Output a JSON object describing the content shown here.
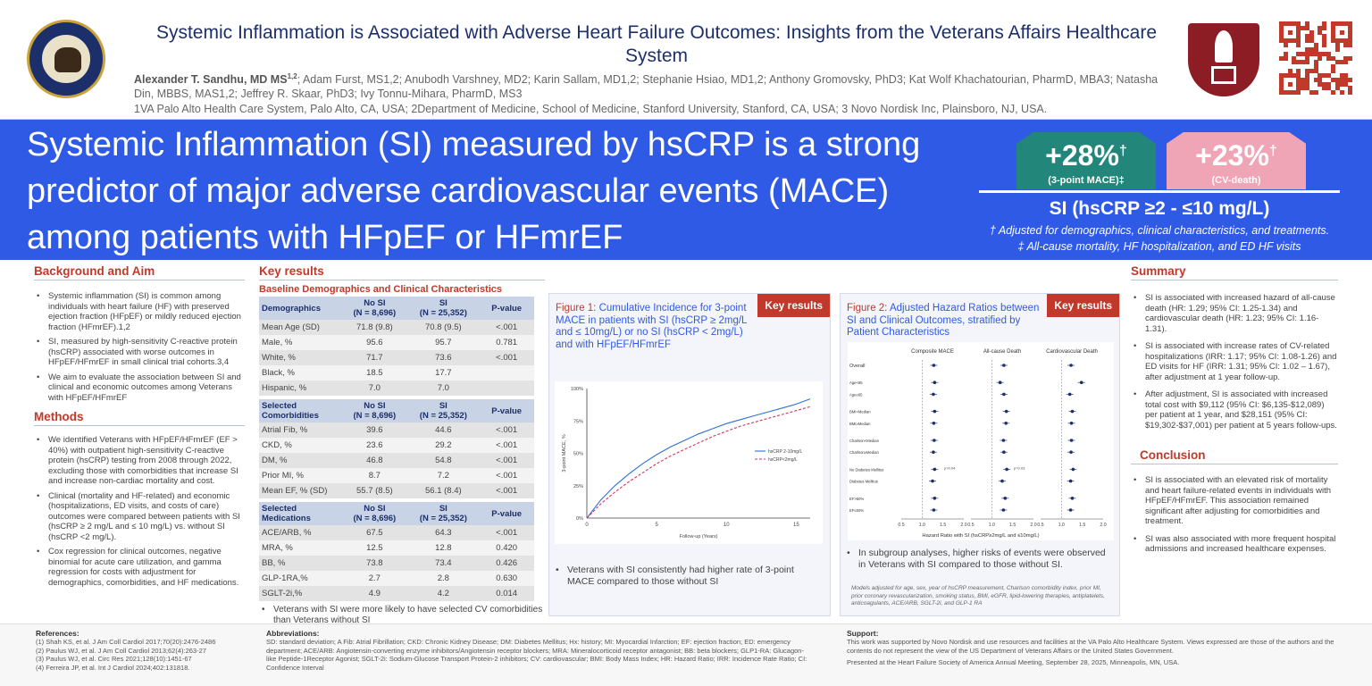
{
  "header": {
    "title": "Systemic Inflammation is Associated with Adverse Heart Failure Outcomes: Insights from the Veterans Affairs Healthcare System",
    "lead_author": "Alexander T. Sandhu, MD MS",
    "lead_author_sup": "1,2",
    "authors_rest": "; Adam Furst, MS1,2; Anubodh Varshney, MD2; Karin Sallam, MD1,2; Stephanie Hsiao, MD1,2; Anthony Gromovsky, PhD3; Kat Wolf Khachatourian, PharmD, MBA3; Natasha Din, MBBS, MAS1,2; Jeffrey R. Skaar, PhD3; Ivy Tonnu-Mihara, PharmD, MS3",
    "affiliations": "1VA Palo Alto Health Care System, Palo Alto, CA, USA; 2Department of Medicine, School of Medicine, Stanford University, Stanford, CA, USA; 3 Novo Nordisk Inc, Plainsboro, NJ, USA."
  },
  "banner": {
    "headline": "Systemic Inflammation (SI) measured by hsCRP is a strong predictor of major adverse cardiovascular events (MACE) among patients with HFpEF or HFmrEF",
    "badge1_value": "+28%",
    "badge1_mark": "†",
    "badge1_label": "(3-point MACE)‡",
    "badge2_value": "+23%",
    "badge2_mark": "†",
    "badge2_label": "(CV-death)",
    "si_label": "SI (hsCRP ≥2 - ≤10 mg/L)",
    "note1": "† Adjusted for demographics, clinical characteristics, and treatments.",
    "note2": "‡ All-cause mortality, HF hospitalization, and ED HF visits",
    "colors": {
      "banner": "#2f5ae6",
      "badge1": "#23867a",
      "badge2": "#f0a5b7"
    }
  },
  "background": {
    "heading": "Background and Aim",
    "bullets": [
      "Systemic inflammation (SI) is common among individuals with heart failure (HF) with preserved ejection fraction (HFpEF) or mildly reduced ejection fraction (HFmrEF).1,2",
      "SI, measured by high-sensitivity C-reactive protein (hsCRP) associated with worse outcomes in HFpEF/HFmrEF in small clinical trial cohorts.3,4",
      "We aim to evaluate the association between SI and clinical and economic outcomes among Veterans with HFpEF/HFmrEF"
    ]
  },
  "methods": {
    "heading": "Methods",
    "bullets": [
      "We identified Veterans with HFpEF/HFmrEF (EF > 40%) with outpatient high-sensitivity C-reactive protein (hsCRP) testing from 2008 through 2022, excluding those with comorbidities that increase SI and increase non-cardiac mortality and cost.",
      "Clinical (mortality and HF-related) and economic (hospitalizations, ED visits, and costs of care) outcomes were compared between patients with SI (hsCRP ≥ 2 mg/L and ≤ 10 mg/L) vs. without SI (hsCRP <2 mg/L).",
      "Cox regression for clinical outcomes, negative binomial for acute care utilization, and gamma regression for costs with adjustment for demographics, comorbidities, and HF medications."
    ]
  },
  "key_results": {
    "heading": "Key results",
    "subheading": "Baseline Demographics and Clinical Characteristics",
    "tables": [
      {
        "headers": [
          "Demographics",
          "No SI\n(N = 8,696)",
          "SI\n(N = 25,352)",
          "P-value"
        ],
        "rows": [
          [
            "Mean Age (SD)",
            "71.8 (9.8)",
            "70.8 (9.5)",
            "<.001"
          ],
          [
            "Male, %",
            "95.6",
            "95.7",
            "0.781"
          ],
          [
            "White, %",
            "71.7",
            "73.6",
            "<.001"
          ],
          [
            "Black, %",
            "18.5",
            "17.7",
            ""
          ],
          [
            "Hispanic, %",
            "7.0",
            "7.0",
            ""
          ]
        ]
      },
      {
        "headers": [
          "Selected\nComorbidities",
          "No SI\n(N = 8,696)",
          "SI\n(N = 25,352)",
          "P-value"
        ],
        "rows": [
          [
            "Atrial Fib, %",
            "39.6",
            "44.6",
            "<.001"
          ],
          [
            "CKD, %",
            "23.6",
            "29.2",
            "<.001"
          ],
          [
            "DM, %",
            "46.8",
            "54.8",
            "<.001"
          ],
          [
            "Prior MI, %",
            "8.7",
            "7.2",
            "<.001"
          ],
          [
            "Mean EF, % (SD)",
            "55.7 (8.5)",
            "56.1 (8.4)",
            "<.001"
          ]
        ]
      },
      {
        "headers": [
          "Selected\nMedications",
          "No SI\n(N = 8,696)",
          "SI\n(N = 25,352)",
          "P-value"
        ],
        "rows": [
          [
            "ACE/ARB, %",
            "67.5",
            "64.3",
            "<.001"
          ],
          [
            "MRA, %",
            "12.5",
            "12.8",
            "0.420"
          ],
          [
            "BB, %",
            "73.8",
            "73.4",
            "0.426"
          ],
          [
            "GLP-1RA,%",
            "2.7",
            "2.8",
            "0.630"
          ],
          [
            "SGLT-2i,%",
            "4.9",
            "4.2",
            "0.014"
          ]
        ]
      }
    ],
    "bullet": "Veterans with SI were more likely to have selected CV comorbidities than Veterans without SI"
  },
  "figure1": {
    "badge": "Key results",
    "label": "Figure 1:",
    "title": "Cumulative Incidence for 3-point MACE in patients with SI (hsCRP ≥ 2mg/L and ≤ 10mg/L) or no SI (hsCRP < 2mg/L) and with HFpEF/HFmrEF",
    "bullet": "Veterans with SI consistently had higher rate of 3-point MACE compared to those without SI"
  },
  "figure2": {
    "badge": "Key results",
    "label": "Figure 2:",
    "title": "Adjusted Hazard Ratios between SI and Clinical Outcomes, stratified by Patient Characteristics",
    "bullet": "In subgroup analyses, higher risks of events were observed in Veterans with SI compared to those without SI.",
    "footnote": "Models adjusted for age, sex, year of hsCRP measurement, Charlson comorbidity index, prior MI, prior coronary revascularization, smoking status, BMI, eGFR, lipid-lowering therapies, antiplatelets, anticoagulants, ACE/ARB, SGLT-2i, and GLP-1 RA"
  },
  "chart_data": [
    {
      "type": "line",
      "title": "",
      "xlabel": "Follow-up (Years)",
      "ylabel": "3-point MACE, %",
      "xlim": [
        0,
        16
      ],
      "ylim": [
        0,
        100
      ],
      "xticks": [
        "0",
        "5",
        "10",
        "15"
      ],
      "yticks": [
        "0%",
        "25%",
        "50%",
        "75%",
        "100%"
      ],
      "legend_position": "right",
      "series": [
        {
          "name": "hsCRP 2-10mg/L",
          "color": "#2f6fd6",
          "dash": false,
          "x": [
            0,
            1,
            2,
            3,
            4,
            5,
            6,
            7,
            8,
            9,
            10,
            11,
            12,
            13,
            14,
            15,
            16
          ],
          "values": [
            0,
            14,
            25,
            34,
            42,
            49,
            55,
            60,
            65,
            69,
            73,
            76,
            79,
            82,
            85,
            88,
            92
          ]
        },
        {
          "name": "hsCRP<2mg/L",
          "color": "#d6335a",
          "dash": true,
          "x": [
            0,
            1,
            2,
            3,
            4,
            5,
            6,
            7,
            8,
            9,
            10,
            11,
            12,
            13,
            14,
            15,
            16
          ],
          "values": [
            0,
            11,
            20,
            28,
            35,
            42,
            48,
            53,
            58,
            63,
            67,
            71,
            74,
            77,
            80,
            83,
            86
          ]
        }
      ]
    },
    {
      "type": "scatter",
      "title": "",
      "xlabel": "Hazard Ratio with SI (hsCRP≥2mg/L and ≤10mg/L)",
      "panels": [
        "Composite MACE",
        "All-cause Death",
        "Cardiovascular Death"
      ],
      "xticks": [
        "0.5",
        "1.0",
        "1.5",
        "2.0"
      ],
      "xlim": [
        0.5,
        2.0
      ],
      "subgroups": [
        "Overall",
        "Age<65",
        "Age≥65",
        "BMI<Median",
        "BMI≥Median",
        "Charlson<Median",
        "Charlson≥Median",
        "No Diabetes Mellitus",
        "Diabetes Mellitus",
        "EF>50%",
        "EF≤50%"
      ],
      "annotations": [
        "p=0.04",
        "p=0.03"
      ],
      "estimates": [
        [
          1.28,
          1.3,
          1.27,
          1.3,
          1.28,
          1.29,
          1.27,
          1.3,
          1.25,
          1.3,
          1.28
        ],
        [
          1.29,
          1.2,
          1.29,
          1.35,
          1.34,
          1.28,
          1.29,
          1.36,
          1.25,
          1.32,
          1.28
        ],
        [
          1.23,
          1.48,
          1.2,
          1.26,
          1.24,
          1.24,
          1.23,
          1.28,
          1.22,
          1.26,
          1.22
        ]
      ]
    }
  ],
  "summary": {
    "heading": "Summary",
    "bullets": [
      "SI is associated with increased hazard of all-cause death (HR: 1.29; 95% CI: 1.25-1.34) and cardiovascular death (HR: 1.23; 95% CI: 1.16-1.31).",
      "SI is associated with increase rates of CV-related hospitalizations (IRR: 1.17; 95% CI: 1.08-1.26) and ED visits for HF (IRR: 1.31; 95% CI: 1.02 – 1.67), after adjustment at 1 year follow-up.",
      "After adjustment, SI is associated with increased total cost with $9,112 (95% CI: $6,135-$12,089) per patient at 1 year, and $28,151 (95% CI: $19,302-$37,001) per patient at 5 years follow-ups."
    ]
  },
  "conclusion": {
    "heading": "Conclusion",
    "bullets": [
      "SI is associated with an elevated risk of mortality and heart failure-related events in individuals with HFpEF/HFmrEF. This association remained significant after adjusting for comorbidities and treatment.",
      "SI was also associated with more frequent hospital admissions and increased healthcare expenses."
    ]
  },
  "footer": {
    "refs_heading": "References:",
    "refs": [
      "(1)  Shah KS, et al. J Am Coll Cardiol 2017;70(20):2476-2486",
      "(2)  Paulus WJ, et al. J Am Coll Cardiol 2013;62(4):263-27",
      "(3)  Paulus WJ, et al. Circ Res 2021;128(10):1451-67",
      "(4)  Ferreira JP, et al. Int J Cardiol 2024;402:131818."
    ],
    "abbr_heading": "Abbreviations:",
    "abbr": "SD: standard deviation; A Fib: Atrial Fibrillation; CKD: Chronic Kidney Disease; DM: Diabetes Mellitus; Hx: history; MI: Myocardial Infarction; EF: ejection fraction; ED: emergency department; ACE/ARB: Angiotensin-converting enzyme inhibitors/Angiotensin receptor blockers; MRA: Mineralocorticoid receptor antagonist; BB: beta blockers; GLP1-RA: Glucagon-like Peptide-1Receptor Agonist; SGLT-2i: Sodium-Glucose Transport Protein-2 inhibitors; CV: cardiovascular; BMI: Body Mass Index; HR: Hazard Ratio; IRR: Incidence Rate Ratio; CI: Confidence Interval",
    "support_heading": "Support:",
    "support": "This work was supported by Novo Nordisk and use resources and facilities at the VA Palo Alto Healthcare System. Views expressed are those of the authors and the contents do not represent the view of the US Department of Veterans Affairs or the United States Government.",
    "presented": "Presented at the Heart Failure Society of America Annual Meeting, September 28, 2025, Minneapolis, MN, USA."
  }
}
